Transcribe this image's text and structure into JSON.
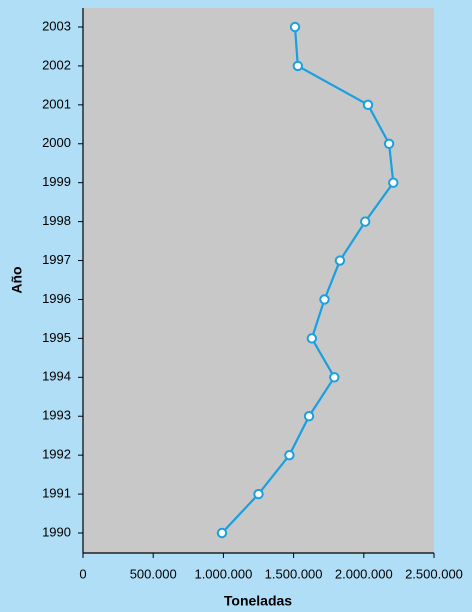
{
  "chart_data": {
    "type": "line",
    "xlabel": "Toneladas",
    "ylabel": "Año",
    "categories": [
      "1990",
      "1991",
      "1992",
      "1993",
      "1994",
      "1995",
      "1996",
      "1997",
      "1998",
      "1999",
      "2000",
      "2001",
      "2002",
      "2003"
    ],
    "series": [
      {
        "name": "Toneladas",
        "color": "#1a9fe0",
        "values": [
          990000,
          1250000,
          1470000,
          1610000,
          1790000,
          1630000,
          1720000,
          1830000,
          2010000,
          2210000,
          2180000,
          2030000,
          1530000,
          1510000
        ]
      }
    ],
    "xlim": [
      0,
      2500000
    ],
    "xticks": [
      0,
      {
        "value": 500000,
        "label": "500.000"
      },
      {
        "value": 1000000,
        "label": "1.000.000"
      },
      {
        "value": 1500000,
        "label": "1.500.000"
      },
      {
        "value": 2000000,
        "label": "2.000.000"
      },
      {
        "value": 2500000,
        "label": "2.500.000"
      }
    ]
  }
}
